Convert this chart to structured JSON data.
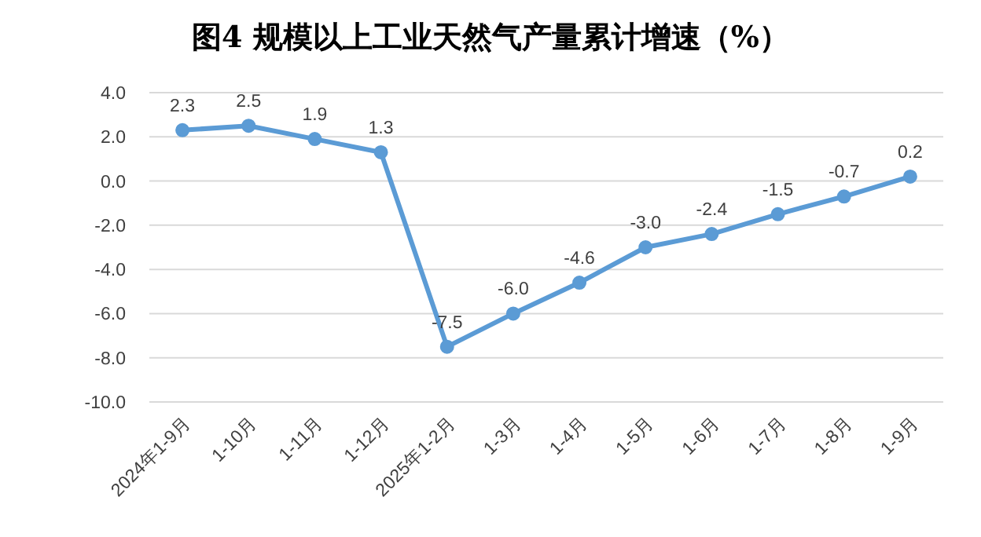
{
  "chart_data": {
    "type": "line",
    "title": "图4 规模以上工业天然气产量累计增速（%）",
    "categories": [
      "2024年1-9月",
      "1-10月",
      "1-11月",
      "1-12月",
      "2025年1-2月",
      "1-3月",
      "1-4月",
      "1-5月",
      "1-6月",
      "1-7月",
      "1-8月",
      "1-9月"
    ],
    "series": [
      {
        "color": "#5b9bd5",
        "values": [
          2.3,
          2.5,
          1.9,
          1.3,
          -7.5,
          -6.0,
          -4.6,
          -3.0,
          -2.4,
          -1.5,
          -0.7,
          0.2
        ],
        "value_labels": [
          "2.3",
          "2.5",
          "1.9",
          "1.3",
          "-7.5",
          "-6.0",
          "-4.6",
          "-3.0",
          "-2.4",
          "-1.5",
          "-0.7",
          "0.2"
        ]
      }
    ],
    "ylim": [
      -10,
      4
    ],
    "yticks": [
      {
        "value": 4,
        "label": "4.0"
      },
      {
        "value": 2,
        "label": "2.0"
      },
      {
        "value": 0,
        "label": "0.0"
      },
      {
        "value": -2,
        "label": "-2.0"
      },
      {
        "value": -4,
        "label": "-4.0"
      },
      {
        "value": -6,
        "label": "-6.0"
      },
      {
        "value": -8,
        "label": "-8.0"
      },
      {
        "value": -10,
        "label": "-10.0"
      }
    ],
    "grid": "y",
    "marker": "circle",
    "line_style": "solid"
  }
}
